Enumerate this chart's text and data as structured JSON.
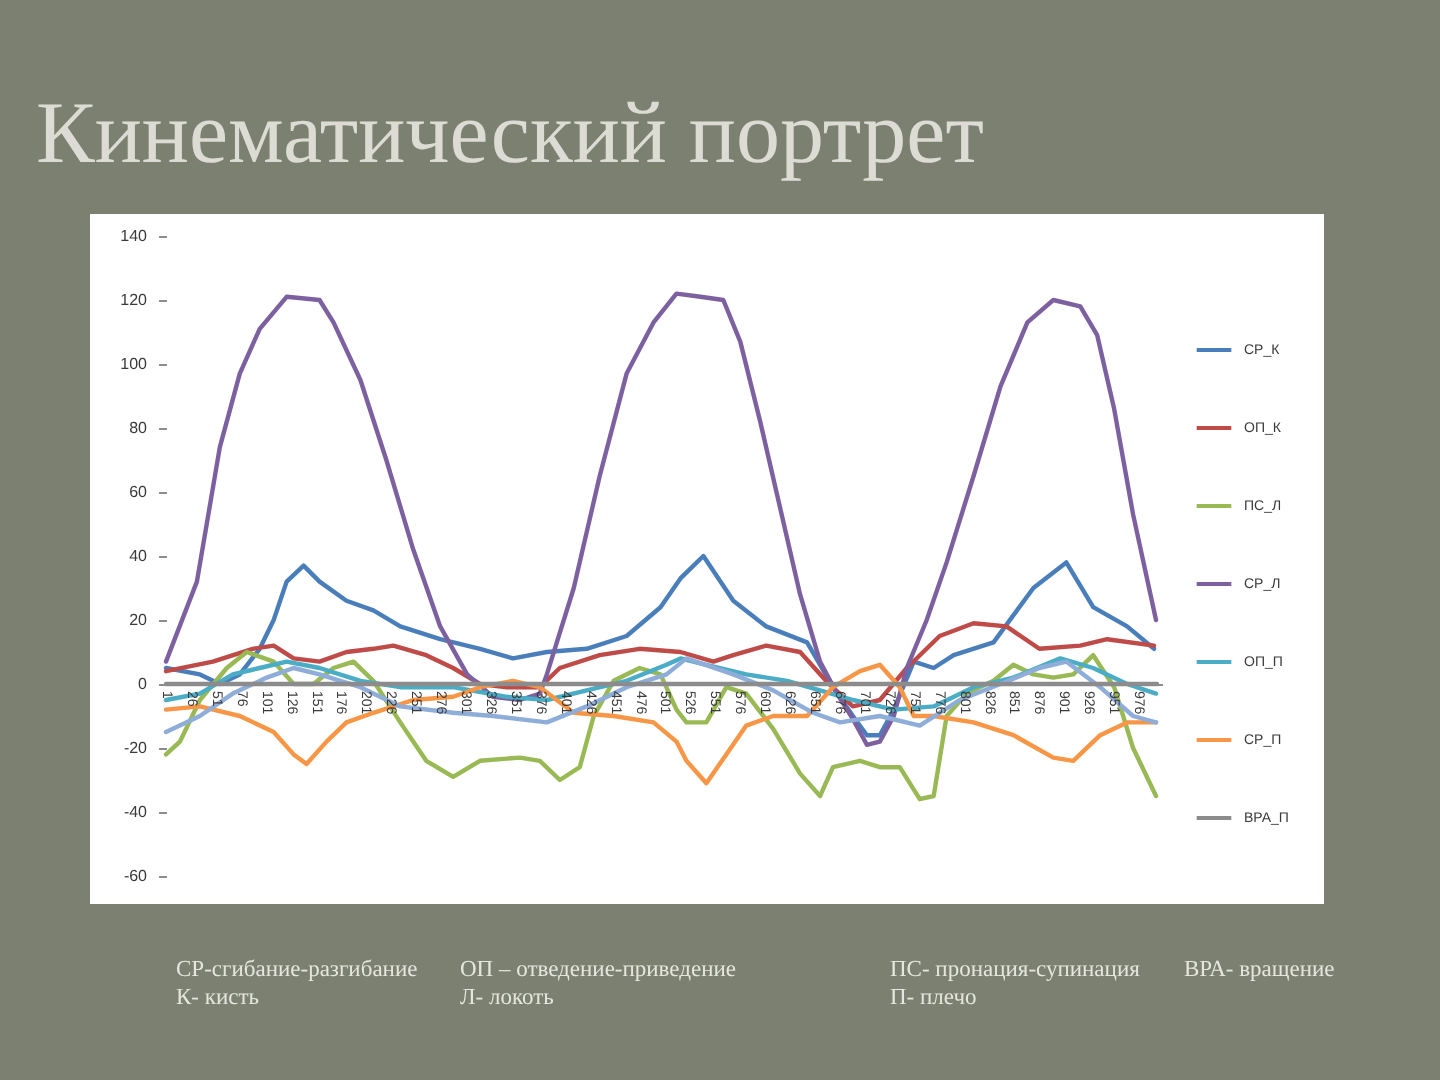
{
  "chart_data": {
    "type": "line",
    "title": "Кинематический портрет",
    "xlim": [
      1,
      1000
    ],
    "xticks": [
      1,
      26,
      51,
      76,
      101,
      126,
      151,
      176,
      201,
      226,
      251,
      276,
      301,
      326,
      351,
      376,
      401,
      426,
      451,
      476,
      501,
      526,
      551,
      576,
      601,
      626,
      651,
      676,
      701,
      726,
      751,
      776,
      801,
      826,
      851,
      876,
      901,
      926,
      951,
      976
    ],
    "ylim": [
      -60,
      140
    ],
    "yticks": [
      140,
      120,
      100,
      80,
      60,
      40,
      20,
      0,
      -20,
      -40,
      -60
    ],
    "legend": "right",
    "series": [
      {
        "name": "СР_К",
        "color": "#4a7ebb",
        "x": [
          1,
          35,
          55,
          75,
          95,
          109,
          122,
          139,
          155,
          182,
          209,
          236,
          276,
          316,
          349,
          383,
          423,
          463,
          497,
          517,
          540,
          570,
          603,
          644,
          670,
          690,
          704,
          717,
          731,
          751,
          771,
          791,
          831,
          871,
          904,
          931,
          965,
          992
        ],
        "values": [
          5,
          3,
          0,
          3,
          11,
          20,
          32,
          37,
          32,
          26,
          23,
          18,
          14,
          11,
          8,
          10,
          11,
          15,
          24,
          33,
          40,
          26,
          18,
          13,
          -1,
          -10,
          -16,
          -16,
          -8,
          7,
          5,
          9,
          13,
          30,
          38,
          24,
          18,
          11
        ]
      },
      {
        "name": "ОП_К",
        "color": "#be4b48",
        "x": [
          1,
          48,
          88,
          109,
          129,
          155,
          182,
          209,
          229,
          262,
          289,
          316,
          343,
          376,
          396,
          436,
          476,
          517,
          550,
          570,
          603,
          637,
          663,
          690,
          717,
          744,
          777,
          811,
          844,
          877,
          918,
          945,
          992
        ],
        "values": [
          4,
          7,
          11,
          12,
          8,
          7,
          10,
          11,
          12,
          9,
          5,
          0,
          -1,
          -1,
          5,
          9,
          11,
          10,
          7,
          9,
          12,
          10,
          1,
          -7,
          -5,
          5,
          15,
          19,
          18,
          11,
          12,
          14,
          12
        ]
      },
      {
        "name": "ПС_Л",
        "color": "#98b954",
        "x": [
          1,
          15,
          35,
          62,
          82,
          109,
          129,
          149,
          169,
          189,
          209,
          236,
          262,
          289,
          316,
          356,
          376,
          396,
          416,
          430,
          450,
          476,
          497,
          513,
          523,
          543,
          563,
          583,
          610,
          637,
          657,
          670,
          697,
          717,
          737,
          757,
          771,
          784,
          804,
          831,
          851,
          871,
          891,
          911,
          931,
          952,
          971,
          994
        ],
        "values": [
          -22,
          -18,
          -5,
          5,
          10,
          7,
          0,
          0,
          5,
          7,
          1,
          -12,
          -24,
          -29,
          -24,
          -23,
          -24,
          -30,
          -26,
          -10,
          1,
          5,
          3,
          -8,
          -12,
          -12,
          -1,
          -3,
          -14,
          -28,
          -35,
          -26,
          -24,
          -26,
          -26,
          -36,
          -35,
          -10,
          -3,
          1,
          6,
          3,
          2,
          3,
          9,
          -1,
          -20,
          -35
        ]
      },
      {
        "name": "СР_Л",
        "color": "#7d60a0",
        "x": [
          1,
          32,
          55,
          75,
          95,
          122,
          155,
          169,
          196,
          222,
          249,
          276,
          303,
          329,
          356,
          376,
          383,
          410,
          436,
          463,
          490,
          513,
          537,
          560,
          577,
          597,
          617,
          637,
          657,
          674,
          690,
          704,
          717,
          731,
          744,
          764,
          784,
          811,
          838,
          865,
          891,
          918,
          935,
          952,
          971,
          994
        ],
        "values": [
          7,
          32,
          74,
          97,
          111,
          121,
          120,
          113,
          95,
          70,
          42,
          18,
          3,
          -4,
          -5,
          -3,
          3,
          30,
          65,
          97,
          113,
          122,
          121,
          120,
          107,
          82,
          55,
          28,
          7,
          -3,
          -11,
          -19,
          -18,
          -10,
          5,
          20,
          38,
          65,
          93,
          113,
          120,
          118,
          109,
          86,
          53,
          20
        ]
      },
      {
        "name": "ОП_П",
        "color": "#4bacc6",
        "x": [
          1,
          35,
          68,
          95,
          122,
          155,
          196,
          236,
          289,
          343,
          383,
          423,
          463,
          503,
          517,
          543,
          583,
          624,
          657,
          690,
          731,
          771,
          811,
          851,
          898,
          931,
          965,
          994
        ],
        "values": [
          -5,
          -3,
          3,
          5,
          7,
          5,
          1,
          -1,
          -1,
          -4,
          -5,
          -2,
          1,
          6,
          8,
          6,
          3,
          1,
          -2,
          -5,
          -8,
          -7,
          -1,
          2,
          8,
          5,
          0,
          -3
        ]
      },
      {
        "name": "СР_П",
        "color": "#f79646",
        "x": [
          1,
          35,
          75,
          109,
          129,
          142,
          162,
          182,
          209,
          249,
          289,
          316,
          349,
          376,
          410,
          450,
          490,
          513,
          523,
          543,
          563,
          583,
          610,
          644,
          670,
          697,
          717,
          737,
          751,
          771,
          811,
          851,
          891,
          911,
          938,
          965,
          994
        ],
        "values": [
          -8,
          -7,
          -10,
          -15,
          -22,
          -25,
          -18,
          -12,
          -9,
          -5,
          -4,
          -1,
          1,
          -1,
          -9,
          -10,
          -12,
          -18,
          -24,
          -31,
          -22,
          -13,
          -10,
          -10,
          -1,
          4,
          6,
          -1,
          -10,
          -10,
          -12,
          -16,
          -23,
          -24,
          -16,
          -12,
          -12
        ]
      },
      {
        "color": "#8fadd9",
        "x": [
          1,
          35,
          68,
          102,
          129,
          155,
          196,
          236,
          289,
          329,
          383,
          423,
          463,
          503,
          523,
          570,
          610,
          650,
          677,
          717,
          757,
          797,
          838,
          877,
          904,
          938,
          971,
          994
        ],
        "values": [
          -15,
          -10,
          -3,
          2,
          5,
          3,
          -1,
          -7,
          -9,
          -10,
          -12,
          -7,
          -1,
          3,
          8,
          3,
          -2,
          -9,
          -12,
          -10,
          -13,
          -5,
          0,
          5,
          7,
          -1,
          -10,
          -12
        ]
      },
      {
        "name": "ВРА_П",
        "color": "#8c8c8c",
        "x": [
          1,
          995
        ],
        "values": [
          0,
          0
        ]
      }
    ],
    "annotations": [
      "СР-сгибание-разгибание",
      "К- кисть",
      "ОП – отведение-приведение",
      "Л- локоть",
      "ПС- пронация-супинация",
      "П- плечо",
      "ВРА- вращение"
    ]
  }
}
